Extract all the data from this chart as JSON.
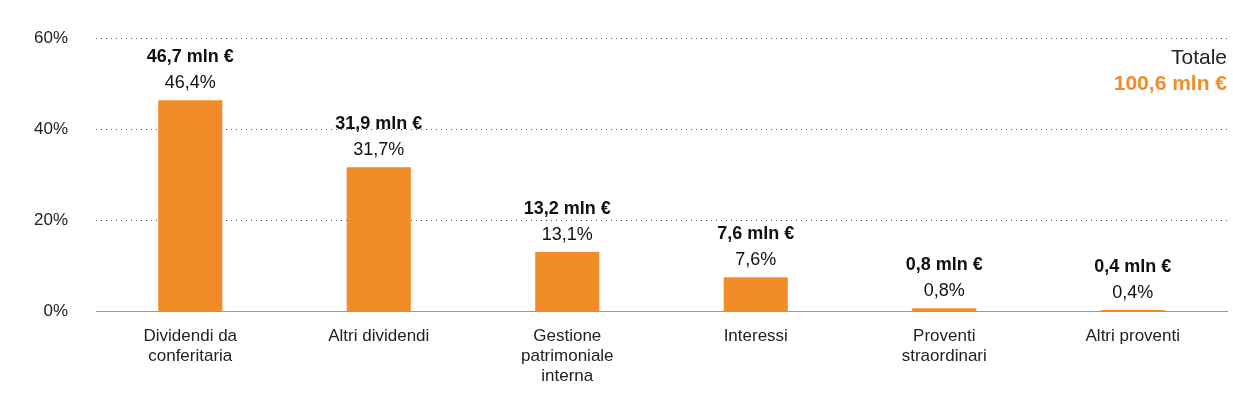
{
  "chart_data": {
    "type": "bar",
    "categories": [
      "Dividendi da conferitaria",
      "Altri dividendi",
      "Gestione patrimoniale interna",
      "Interessi",
      "Proventi straordinari",
      "Altri proventi"
    ],
    "values": [
      46.4,
      31.7,
      13.1,
      7.6,
      0.8,
      0.4
    ],
    "value_labels": [
      "46,7 mln €\n46,4%",
      "31,9 mln €\n31,7%",
      "13,2 mln €\n13,1%",
      "7,6 mln €\n7,6%",
      "0,8 mln €\n0,8%",
      "0,4 mln €\n0,4%"
    ],
    "color": "#f28c28",
    "ylim": [
      0,
      60
    ],
    "yticks": [
      {
        "value": 0,
        "label": "0%"
      },
      {
        "value": 20,
        "label": "20%"
      },
      {
        "value": 40,
        "label": "40%"
      },
      {
        "value": 60,
        "label": "60%"
      }
    ],
    "grid": "y",
    "legend": false,
    "annotations": [
      "Totale",
      "100,6 mln €"
    ]
  }
}
